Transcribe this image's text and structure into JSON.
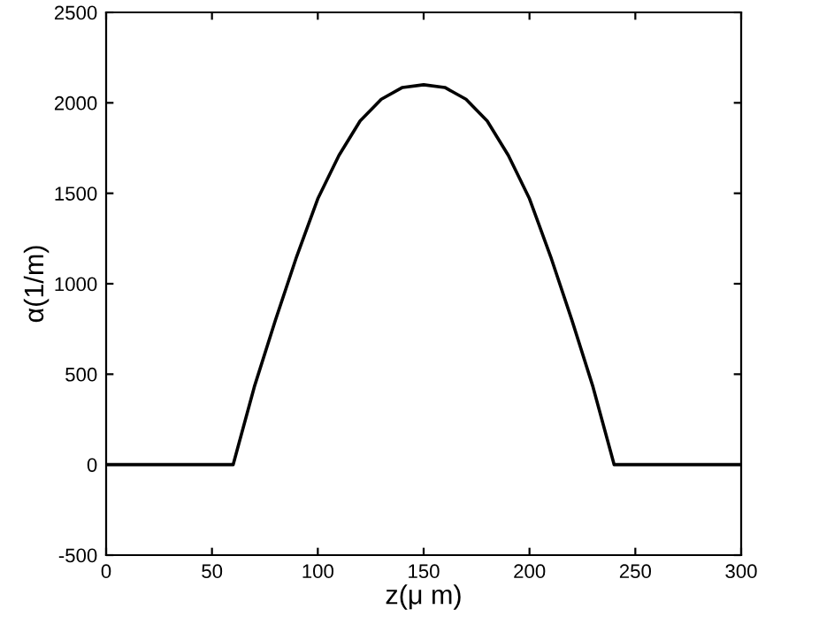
{
  "chart_data": {
    "type": "line",
    "xlabel": "z(μ m)",
    "ylabel": "α(1/m)",
    "x": [
      0,
      60,
      70,
      80,
      90,
      100,
      110,
      120,
      130,
      140,
      150,
      160,
      170,
      180,
      190,
      200,
      210,
      220,
      230,
      240,
      300
    ],
    "series": [
      {
        "color": "#000000",
        "values": [
          0,
          0,
          430,
          800,
          1150,
          1470,
          1710,
          1900,
          2020,
          2085,
          2100,
          2085,
          2020,
          1900,
          1710,
          1470,
          1150,
          800,
          430,
          0,
          0
        ]
      }
    ],
    "xlim": [
      0,
      300
    ],
    "ylim": [
      -500,
      2500
    ],
    "xticks": [
      0,
      50,
      100,
      150,
      200,
      250,
      300
    ],
    "yticks": [
      -500,
      0,
      500,
      1000,
      1500,
      2000,
      2500
    ],
    "grid": false,
    "legend": false,
    "marker": "none",
    "line_style": "solid"
  }
}
